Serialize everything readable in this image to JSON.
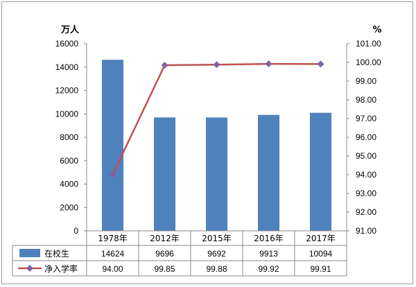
{
  "chart_data": {
    "type": "bar+line",
    "categories": [
      "1978年",
      "2012年",
      "2015年",
      "2016年",
      "2017年"
    ],
    "left_axis": {
      "unit": "万人",
      "ylim": [
        0,
        16000
      ],
      "ticks": [
        "0",
        "2000",
        "4000",
        "6000",
        "8000",
        "10000",
        "12000",
        "14000",
        "16000"
      ]
    },
    "right_axis": {
      "unit": "%",
      "ylim": [
        91,
        101
      ],
      "ticks": [
        "91.00",
        "92.00",
        "93.00",
        "94.00",
        "95.00",
        "96.00",
        "97.00",
        "98.00",
        "99.00",
        "100.00",
        "101.00"
      ]
    },
    "series": [
      {
        "name": "在校生",
        "type": "bar",
        "axis": "left",
        "color": "#4f81bd",
        "values": [
          14624,
          9696,
          9692,
          9913,
          10094
        ],
        "labels": [
          "14624",
          "9696",
          "9692",
          "9913",
          "10094"
        ]
      },
      {
        "name": "净入学率",
        "type": "line",
        "axis": "right",
        "color": "#c0504d",
        "marker_color": "#8064a2",
        "values": [
          94.0,
          99.85,
          99.88,
          99.92,
          99.91
        ],
        "labels": [
          "94.00",
          "99.85",
          "99.88",
          "99.92",
          "99.91"
        ]
      }
    ],
    "grid": false,
    "legend": "data-table"
  }
}
